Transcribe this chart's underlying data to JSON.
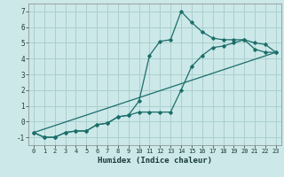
{
  "title": "",
  "xlabel": "Humidex (Indice chaleur)",
  "xlim": [
    -0.5,
    23.5
  ],
  "ylim": [
    -1.5,
    7.5
  ],
  "xticks": [
    0,
    1,
    2,
    3,
    4,
    5,
    6,
    7,
    8,
    9,
    10,
    11,
    12,
    13,
    14,
    15,
    16,
    17,
    18,
    19,
    20,
    21,
    22,
    23
  ],
  "yticks": [
    -1,
    0,
    1,
    2,
    3,
    4,
    5,
    6,
    7
  ],
  "bg_color": "#cce8e8",
  "line_color": "#1a6e6a",
  "grid_color": "#aacfcf",
  "line1_x": [
    0,
    1,
    2,
    3,
    4,
    5,
    6,
    7,
    8,
    9,
    10,
    11,
    12,
    13,
    14,
    15,
    16,
    17,
    18,
    19,
    20,
    21,
    22,
    23
  ],
  "line1_y": [
    -0.7,
    -1.0,
    -1.0,
    -0.7,
    -0.6,
    -0.6,
    -0.2,
    -0.1,
    0.3,
    0.4,
    1.3,
    4.2,
    5.1,
    5.2,
    7.0,
    6.3,
    5.7,
    5.3,
    5.2,
    5.2,
    5.2,
    5.0,
    4.9,
    4.4
  ],
  "line2_x": [
    0,
    1,
    2,
    3,
    4,
    5,
    6,
    7,
    8,
    9,
    10,
    11,
    12,
    13,
    14,
    15,
    16,
    17,
    18,
    19,
    20,
    21,
    22,
    23
  ],
  "line2_y": [
    -0.7,
    -1.0,
    -1.0,
    -0.7,
    -0.6,
    -0.6,
    -0.2,
    -0.1,
    0.3,
    0.4,
    0.6,
    0.6,
    0.6,
    0.6,
    2.0,
    3.5,
    4.2,
    4.7,
    4.8,
    5.0,
    5.2,
    4.6,
    4.4,
    4.4
  ],
  "line3_x": [
    0,
    23
  ],
  "line3_y": [
    -0.7,
    4.4
  ]
}
